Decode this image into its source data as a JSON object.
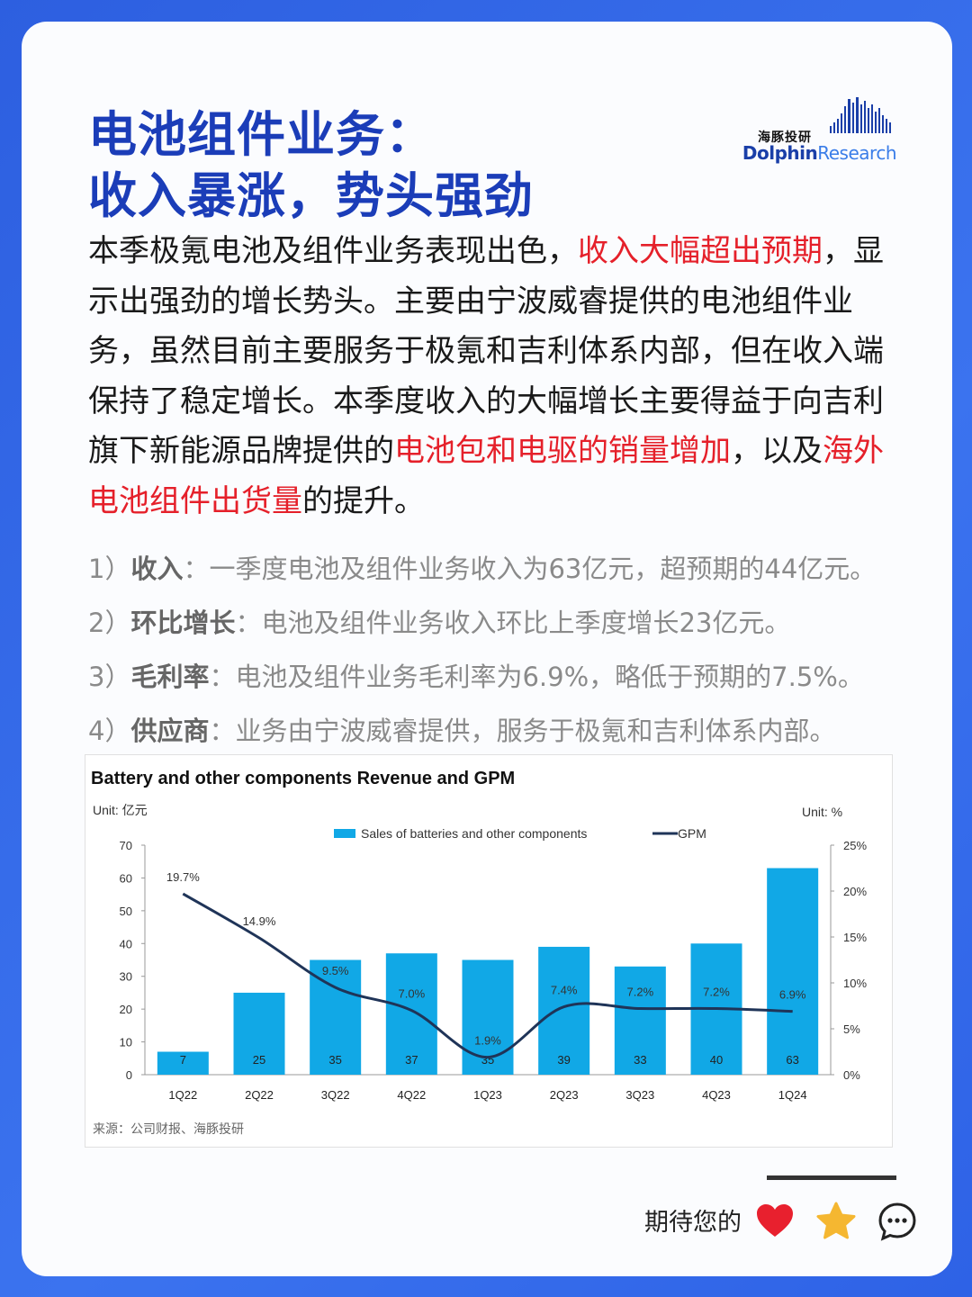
{
  "logo": {
    "cn": "海豚投研",
    "en_a": "Dolphin",
    "en_b": "Research"
  },
  "title": {
    "line1": "电池组件业务：",
    "line2": "收入暴涨，势头强劲"
  },
  "paragraph": {
    "s1": "本季极氪电池及组件业务表现出色，",
    "r1": "收入大幅超出预期",
    "s2": "，显示出强劲的增长势头。主要由宁波威睿提供的电池组件业务，虽然目前主要服务于极氪和吉利体系内部，但在收入端保持了稳定增长。本季度收入的大幅增长主要得益于向吉利旗下新能源品牌提供的",
    "r2": "电池包和电驱的销量增加",
    "s3": "，以及",
    "r3": "海外电池组件出货量",
    "s4": "的提升。"
  },
  "points": [
    {
      "num": "1）",
      "label": "收入",
      "text": "：一季度电池及组件业务收入为63亿元，超预期的44亿元。"
    },
    {
      "num": "2）",
      "label": "环比增长",
      "text": "：电池及组件业务收入环比上季度增长23亿元。"
    },
    {
      "num": "3）",
      "label": "毛利率",
      "text": "：电池及组件业务毛利率为6.9%，略低于预期的7.5%。"
    },
    {
      "num": "4）",
      "label": "供应商",
      "text": "：业务由宁波威睿提供，服务于极氪和吉利体系内部。"
    }
  ],
  "chart_data": {
    "type": "bar",
    "title": "Battery and other components Revenue and GPM",
    "left_unit": "Unit: 亿元",
    "right_unit": "Unit: %",
    "categories": [
      "1Q22",
      "2Q22",
      "3Q22",
      "4Q22",
      "1Q23",
      "2Q23",
      "3Q23",
      "4Q23",
      "1Q24"
    ],
    "series": [
      {
        "name": "Sales of batteries and other components",
        "kind": "bar",
        "axis": "left",
        "color": "#11a8e6",
        "values": [
          7,
          25,
          35,
          37,
          35,
          39,
          33,
          40,
          63
        ],
        "labels": [
          "7",
          "25",
          "35",
          "37",
          "35",
          "39",
          "33",
          "40",
          "63"
        ]
      },
      {
        "name": "GPM",
        "kind": "line",
        "axis": "right",
        "color": "#1f3458",
        "values": [
          19.7,
          14.9,
          9.5,
          7.0,
          1.9,
          7.4,
          7.2,
          7.2,
          6.9
        ],
        "labels": [
          "19.7%",
          "14.9%",
          "9.5%",
          "7.0%",
          "1.9%",
          "7.4%",
          "7.2%",
          "7.2%",
          "6.9%"
        ]
      }
    ],
    "ylim_left": [
      0,
      70
    ],
    "yticks_left": [
      "0",
      "10",
      "20",
      "30",
      "40",
      "50",
      "60",
      "70"
    ],
    "ylim_right": [
      0,
      25
    ],
    "yticks_right": [
      "0%",
      "5%",
      "10%",
      "15%",
      "20%",
      "25%"
    ],
    "legend": "top-center",
    "source": "来源：公司财报、海豚投研"
  },
  "footer": {
    "cta": "期待您的"
  },
  "colors": {
    "title": "#1b3db8",
    "highlight": "#e5202a",
    "bar": "#11a8e6",
    "line": "#1f3458"
  }
}
